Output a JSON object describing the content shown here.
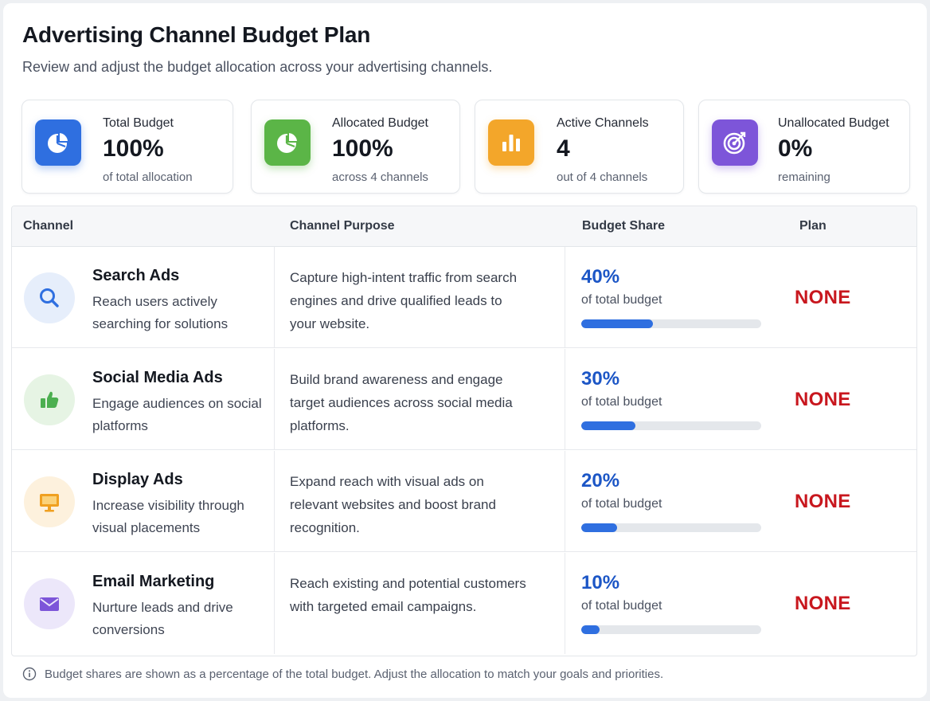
{
  "header": {
    "title": "Advertising Channel Budget Plan",
    "subtitle": "Review and adjust the budget allocation across your advertising channels."
  },
  "stats": [
    {
      "label": "Total Budget",
      "value": "100%",
      "sub": "of total allocation",
      "icon": "pie-chart-icon",
      "color": "#2f6fe0"
    },
    {
      "label": "Allocated Budget",
      "value": "100%",
      "sub": "across 4 channels",
      "icon": "pie-chart-icon",
      "color": "#5bb547"
    },
    {
      "label": "Active Channels",
      "value": "4",
      "sub": "out of 4 channels",
      "icon": "bar-chart-icon",
      "color": "#f3a62a"
    },
    {
      "label": "Unallocated Budget",
      "value": "0%",
      "sub": "remaining",
      "icon": "target-icon",
      "color": "#7d55d9"
    }
  ],
  "table": {
    "headers": {
      "channel": "Channel",
      "purpose": "Channel Purpose",
      "share": "Budget Share",
      "plan": "Plan"
    },
    "rows": [
      {
        "name": "Search Ads",
        "desc": "Reach users actively searching for solutions",
        "purpose": "Capture high-intent traffic from search engines and drive qualified leads to your website.",
        "share_label": "40%",
        "share": 0.4,
        "share_sub": "of total budget",
        "plan": "NONE",
        "icon": "search-icon",
        "icon_color": "#2f6fe0",
        "icon_bg": "#e6eefb"
      },
      {
        "name": "Social Media Ads",
        "desc": "Engage audiences on social platforms",
        "purpose": "Build brand awareness and engage target audiences across social media platforms.",
        "share_label": "30%",
        "share": 0.3,
        "share_sub": "of total budget",
        "plan": "NONE",
        "icon": "thumbs-up-icon",
        "icon_color": "#4caf50",
        "icon_bg": "#e6f4e4"
      },
      {
        "name": "Display Ads",
        "desc": "Increase visibility through visual placements",
        "purpose": "Expand reach with visual ads on relevant websites and boost brand recognition.",
        "share_label": "20%",
        "share": 0.2,
        "share_sub": "of total budget",
        "plan": "NONE",
        "icon": "monitor-icon",
        "icon_color": "#f0a020",
        "icon_bg": "#fdf1dd"
      },
      {
        "name": "Email Marketing",
        "desc": "Nurture leads and drive conversions",
        "purpose": "Reach existing and potential customers with targeted email campaigns.",
        "share_label": "10%",
        "share": 0.1,
        "share_sub": "of total budget",
        "plan": "NONE",
        "icon": "mail-icon",
        "icon_color": "#7d55d9",
        "icon_bg": "#ece7fa"
      }
    ]
  },
  "footnote": {
    "text": "Budget shares are shown as a percentage of the total budget. Adjust the allocation to match your goals and priorities.",
    "icon": "info-icon"
  }
}
